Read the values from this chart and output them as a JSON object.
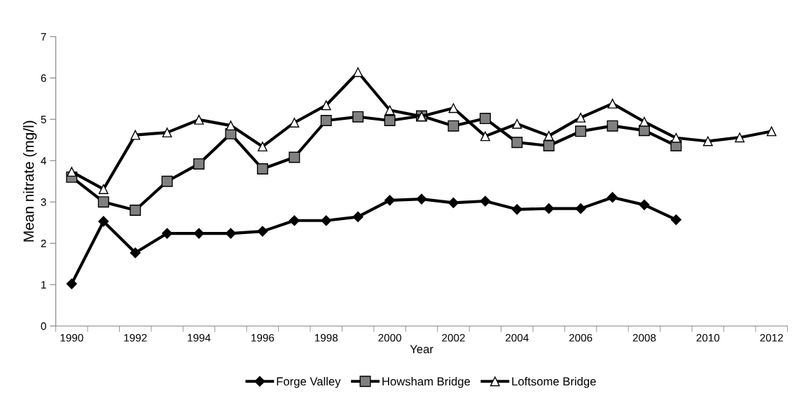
{
  "chart_data": {
    "type": "line",
    "xlabel": "Year",
    "ylabel": "Mean nitrate (mg/l)",
    "categories": [
      "1990",
      null,
      "1992",
      null,
      "1994",
      null,
      "1996",
      null,
      "1998",
      null,
      "2000",
      null,
      "2002",
      null,
      "2004",
      null,
      "2006",
      null,
      "2008",
      null,
      "2010",
      null,
      "2012"
    ],
    "series": [
      {
        "name": "Forge Valley",
        "color": "#000000",
        "marker": "diamond",
        "values": [
          1.02,
          2.53,
          1.77,
          2.24,
          2.24,
          2.24,
          2.29,
          2.55,
          2.55,
          2.64,
          3.04,
          3.07,
          2.98,
          3.02,
          2.82,
          2.84,
          2.84,
          3.11,
          2.93,
          2.57,
          null,
          null,
          null
        ]
      },
      {
        "name": "Howsham Bridge",
        "color": "#808080",
        "marker": "square",
        "values": [
          3.6,
          3.0,
          2.8,
          3.5,
          3.92,
          4.65,
          3.8,
          4.08,
          4.97,
          5.06,
          4.97,
          5.08,
          4.84,
          5.02,
          4.44,
          4.36,
          4.71,
          4.84,
          4.73,
          4.36,
          null,
          null,
          null
        ]
      },
      {
        "name": "Loftsome Bridge",
        "color": "#ffffff",
        "marker": "triangle",
        "values": [
          3.73,
          3.31,
          4.62,
          4.68,
          4.99,
          4.85,
          4.34,
          4.92,
          5.34,
          6.14,
          5.22,
          5.07,
          5.27,
          4.59,
          4.89,
          4.6,
          5.04,
          5.38,
          4.94,
          4.55,
          4.47,
          4.56,
          4.71
        ]
      }
    ],
    "ylim": [
      0,
      7
    ],
    "yticks": [
      0,
      1,
      2,
      3,
      4,
      5,
      6,
      7
    ],
    "grid": false,
    "legend": "bottom",
    "line_style": "solid"
  }
}
